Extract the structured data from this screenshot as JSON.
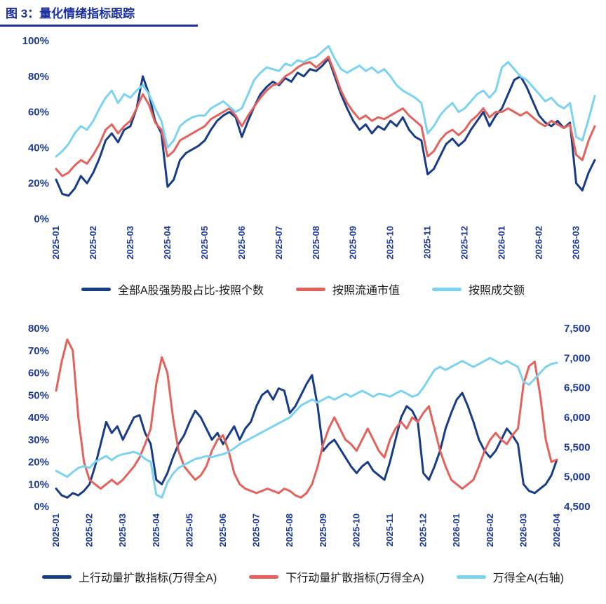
{
  "page": {
    "title": "图 3：量化情绪指标跟踪"
  },
  "colors": {
    "navy": "#183C85",
    "red": "#E4625C",
    "sky": "#7CD3F0",
    "axis_text": "#1C3998",
    "title": "#1B2F9E",
    "legend_text": "#1A1A1A"
  },
  "chart_data": [
    {
      "type": "line",
      "title": "",
      "x_ticks": [
        "2025-01",
        "2025-02",
        "2025-03",
        "2025-04",
        "2025-05",
        "2025-06",
        "2025-07",
        "2025-08",
        "2025-09",
        "2025-10",
        "2025-11",
        "2025-12",
        "2026-01",
        "2026-02",
        "2026-03"
      ],
      "x_domain": 14.5,
      "grid": false,
      "legend_position": "bottom",
      "y_left": {
        "labels": [
          "0%",
          "20%",
          "40%",
          "60%",
          "80%",
          "100%"
        ],
        "range": [
          0,
          100
        ]
      },
      "series": [
        {
          "name": "全部A股强势股占比-按照个数",
          "color_key": "navy",
          "axis": "left",
          "values": [
            22,
            14,
            13,
            17,
            24,
            20,
            26,
            34,
            44,
            48,
            43,
            50,
            52,
            62,
            80,
            70,
            55,
            48,
            18,
            22,
            33,
            37,
            39,
            41,
            44,
            50,
            55,
            58,
            60,
            57,
            46,
            55,
            63,
            70,
            74,
            77,
            75,
            79,
            77,
            82,
            80,
            84,
            83,
            86,
            90,
            80,
            70,
            62,
            55,
            50,
            53,
            48,
            52,
            50,
            55,
            52,
            57,
            50,
            46,
            44,
            25,
            28,
            35,
            42,
            45,
            41,
            44,
            50,
            55,
            60,
            52,
            58,
            62,
            70,
            78,
            80,
            74,
            66,
            58,
            54,
            52,
            55,
            51,
            54,
            20,
            16,
            26,
            33
          ]
        },
        {
          "name": "按照流通市值",
          "color_key": "red",
          "axis": "left",
          "values": [
            28,
            24,
            26,
            30,
            33,
            31,
            36,
            42,
            50,
            53,
            48,
            52,
            55,
            62,
            70,
            64,
            54,
            50,
            35,
            38,
            44,
            46,
            48,
            50,
            52,
            56,
            58,
            60,
            62,
            58,
            52,
            58,
            63,
            68,
            72,
            75,
            76,
            80,
            82,
            85,
            87,
            88,
            85,
            88,
            91,
            82,
            72,
            65,
            60,
            56,
            58,
            55,
            57,
            56,
            58,
            60,
            62,
            58,
            55,
            52,
            35,
            38,
            44,
            48,
            50,
            47,
            50,
            55,
            58,
            62,
            57,
            60,
            60,
            62,
            60,
            58,
            60,
            57,
            54,
            52,
            55,
            53,
            51,
            53,
            36,
            33,
            44,
            52
          ]
        },
        {
          "name": "按照成交额",
          "color_key": "sky",
          "axis": "left",
          "values": [
            35,
            38,
            42,
            48,
            52,
            50,
            55,
            62,
            68,
            72,
            65,
            70,
            68,
            72,
            75,
            70,
            62,
            55,
            40,
            44,
            52,
            55,
            57,
            58,
            58,
            62,
            64,
            66,
            63,
            60,
            62,
            70,
            78,
            82,
            85,
            84,
            83,
            87,
            86,
            89,
            88,
            90,
            91,
            94,
            97,
            90,
            84,
            82,
            84,
            86,
            83,
            85,
            82,
            84,
            80,
            75,
            72,
            70,
            68,
            65,
            48,
            52,
            58,
            62,
            65,
            60,
            62,
            66,
            70,
            72,
            68,
            72,
            85,
            88,
            84,
            80,
            78,
            74,
            70,
            66,
            68,
            64,
            62,
            65,
            46,
            44,
            56,
            69
          ]
        }
      ]
    },
    {
      "type": "line",
      "title": "",
      "x_ticks": [
        "2025-01",
        "2025-02",
        "2025-03",
        "2025-04",
        "2025-05",
        "2025-06",
        "2025-07",
        "2025-08",
        "2025-09",
        "2025-10",
        "2025-11",
        "2025-12",
        "2026-01",
        "2026-02",
        "2026-03",
        "2026-04"
      ],
      "x_domain": 15,
      "grid": false,
      "legend_position": "bottom",
      "y_left": {
        "labels": [
          "0%",
          "10%",
          "20%",
          "30%",
          "40%",
          "50%",
          "60%",
          "70%",
          "80%"
        ],
        "range": [
          0,
          80
        ]
      },
      "y_right": {
        "labels": [
          "4,500",
          "5,000",
          "5,500",
          "6,000",
          "6,500",
          "7,000",
          "7,500"
        ],
        "range": [
          4500,
          7500
        ]
      },
      "series": [
        {
          "name": "上行动量扩散指标(万得全A)",
          "color_key": "navy",
          "axis": "left",
          "values": [
            8,
            5,
            4,
            6,
            5,
            7,
            10,
            18,
            28,
            38,
            33,
            36,
            30,
            35,
            40,
            41,
            33,
            28,
            12,
            10,
            15,
            22,
            28,
            32,
            38,
            43,
            40,
            35,
            30,
            33,
            28,
            32,
            36,
            30,
            35,
            38,
            45,
            50,
            52,
            48,
            53,
            52,
            42,
            45,
            50,
            55,
            59,
            45,
            25,
            28,
            30,
            26,
            22,
            18,
            15,
            18,
            20,
            16,
            14,
            12,
            20,
            30,
            40,
            45,
            43,
            38,
            15,
            12,
            18,
            25,
            35,
            42,
            48,
            51,
            45,
            38,
            30,
            25,
            22,
            25,
            30,
            35,
            32,
            28,
            10,
            7,
            6,
            8,
            10,
            14,
            21
          ]
        },
        {
          "name": "下行动量扩散指标(万得全A)",
          "color_key": "red",
          "axis": "left",
          "values": [
            52,
            65,
            75,
            70,
            40,
            20,
            12,
            10,
            8,
            10,
            12,
            10,
            12,
            15,
            18,
            22,
            28,
            35,
            55,
            67,
            60,
            40,
            25,
            18,
            15,
            12,
            14,
            18,
            25,
            30,
            32,
            25,
            15,
            10,
            8,
            7,
            6,
            7,
            8,
            7,
            6,
            8,
            7,
            5,
            4,
            6,
            10,
            18,
            28,
            35,
            40,
            35,
            30,
            28,
            25,
            30,
            35,
            30,
            25,
            22,
            30,
            35,
            38,
            35,
            40,
            38,
            42,
            45,
            35,
            25,
            18,
            12,
            10,
            8,
            10,
            12,
            18,
            25,
            30,
            33,
            30,
            28,
            32,
            35,
            55,
            63,
            65,
            50,
            30,
            20,
            21
          ]
        },
        {
          "name": "万得全A(右轴)",
          "color_key": "sky",
          "axis": "right",
          "values": [
            5100,
            5050,
            5000,
            5080,
            5150,
            5180,
            5150,
            5250,
            5300,
            5350,
            5280,
            5350,
            5380,
            5400,
            5420,
            5380,
            5300,
            5250,
            4700,
            4650,
            4900,
            5050,
            5150,
            5200,
            5250,
            5300,
            5320,
            5350,
            5330,
            5360,
            5380,
            5420,
            5480,
            5550,
            5600,
            5650,
            5700,
            5750,
            5800,
            5850,
            5900,
            5950,
            6000,
            6100,
            6200,
            6250,
            6300,
            6250,
            6300,
            6350,
            6300,
            6350,
            6400,
            6350,
            6400,
            6450,
            6400,
            6350,
            6400,
            6380,
            6350,
            6400,
            6450,
            6400,
            6350,
            6380,
            6500,
            6650,
            6800,
            6850,
            6800,
            6850,
            6900,
            6950,
            6900,
            6850,
            6900,
            6950,
            7000,
            6950,
            6900,
            6950,
            6900,
            6850,
            6600,
            6550,
            6650,
            6750,
            6850,
            6900,
            6920
          ]
        }
      ]
    }
  ]
}
